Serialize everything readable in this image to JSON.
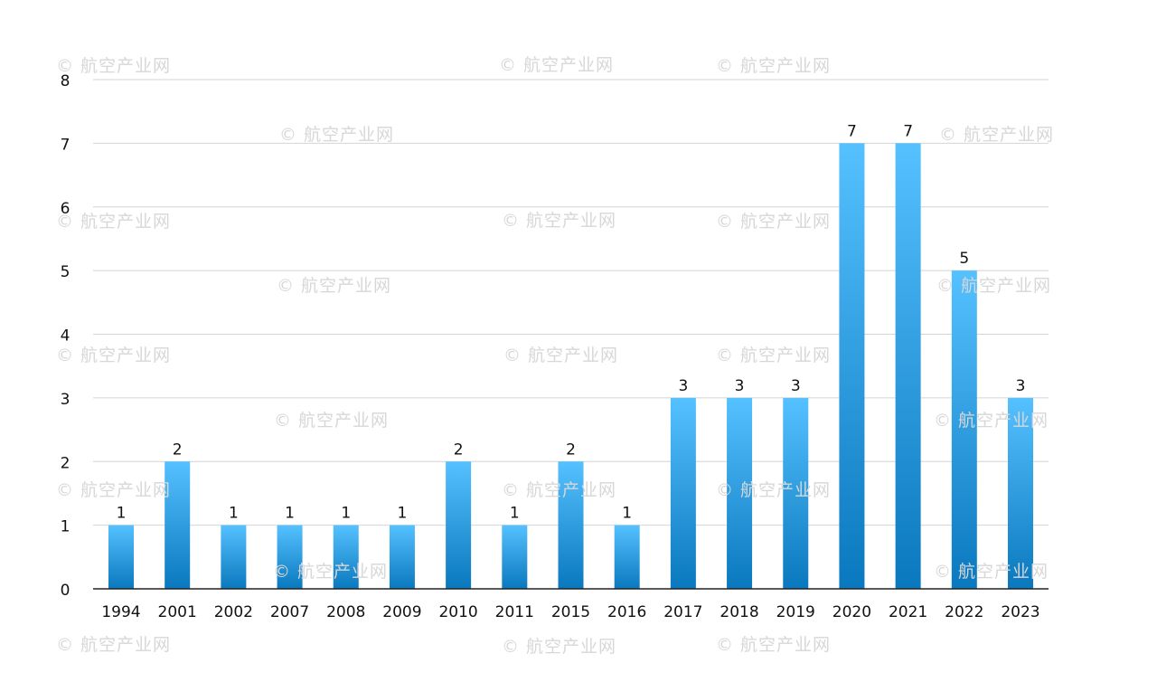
{
  "watermark": "© 航空产业网",
  "colors": {
    "bar_top": "#55c1ff",
    "bar_bottom": "#0a78be",
    "grid": "#d4d4d4",
    "axis": "#222222",
    "text": "#111111",
    "watermark": "#d7d7d7"
  },
  "chart_data": {
    "type": "bar",
    "categories": [
      "1994",
      "2001",
      "2002",
      "2007",
      "2008",
      "2009",
      "2010",
      "2011",
      "2015",
      "2016",
      "2017",
      "2018",
      "2019",
      "2020",
      "2021",
      "2022",
      "2023"
    ],
    "values": [
      1,
      2,
      1,
      1,
      1,
      1,
      2,
      1,
      2,
      1,
      3,
      3,
      3,
      7,
      7,
      5,
      3
    ],
    "ylim": [
      0,
      8
    ],
    "yticks": [
      0,
      1,
      2,
      3,
      4,
      5,
      6,
      7,
      8
    ],
    "title": "",
    "xlabel": "",
    "ylabel": "",
    "grid": true,
    "data_labels": true,
    "legend": "none"
  }
}
